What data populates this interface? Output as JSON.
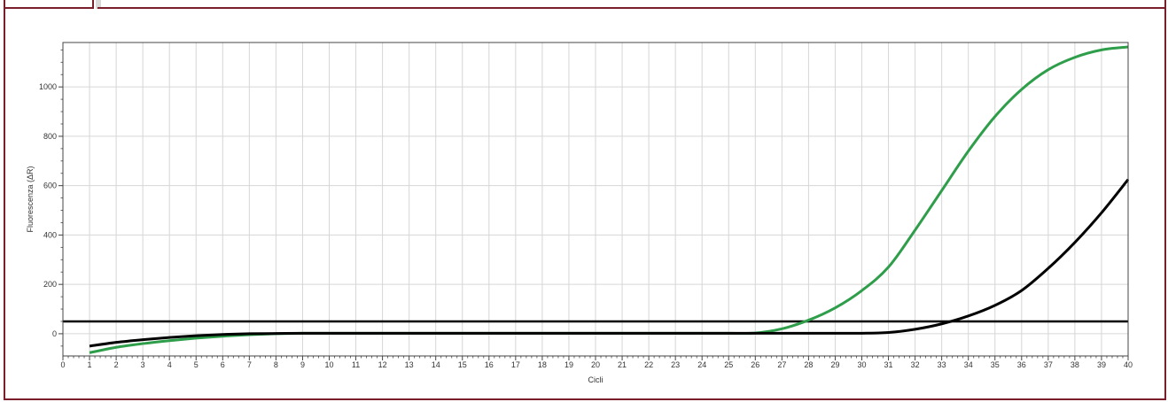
{
  "chart_data": {
    "type": "line",
    "title": "",
    "xlabel": "Cicli",
    "ylabel": "Fluorescenza (ΔR)",
    "xlim": [
      0,
      40
    ],
    "ylim": [
      -90,
      1180
    ],
    "x_ticks": [
      0,
      1,
      2,
      3,
      4,
      5,
      6,
      7,
      8,
      9,
      10,
      11,
      12,
      13,
      14,
      15,
      16,
      17,
      18,
      19,
      20,
      21,
      22,
      23,
      24,
      25,
      26,
      27,
      28,
      29,
      30,
      31,
      32,
      33,
      34,
      35,
      36,
      37,
      38,
      39,
      40
    ],
    "y_ticks": [
      0,
      200,
      400,
      600,
      800,
      1000
    ],
    "grid": true,
    "threshold": 50,
    "series": [
      {
        "color": "#2e9e4a",
        "x": [
          1,
          2,
          3,
          4,
          5,
          6,
          7,
          8,
          9,
          10,
          11,
          12,
          13,
          14,
          15,
          16,
          17,
          18,
          19,
          20,
          21,
          22,
          23,
          24,
          25,
          26,
          27,
          28,
          29,
          30,
          31,
          32,
          33,
          34,
          35,
          36,
          37,
          38,
          39,
          40
        ],
        "y": [
          -77,
          -55,
          -40,
          -28,
          -18,
          -10,
          -4,
          0,
          2,
          2,
          2,
          2,
          2,
          2,
          2,
          2,
          2,
          2,
          2,
          2,
          2,
          2,
          2,
          2,
          2,
          3,
          20,
          55,
          105,
          175,
          270,
          420,
          580,
          740,
          880,
          990,
          1070,
          1120,
          1150,
          1162
        ]
      },
      {
        "color": "#000000",
        "x": [
          1,
          2,
          3,
          4,
          5,
          6,
          7,
          8,
          9,
          10,
          11,
          12,
          13,
          14,
          15,
          16,
          17,
          18,
          19,
          20,
          21,
          22,
          23,
          24,
          25,
          26,
          27,
          28,
          29,
          30,
          31,
          32,
          33,
          34,
          35,
          36,
          37,
          38,
          39,
          40
        ],
        "y": [
          -50,
          -35,
          -24,
          -15,
          -8,
          -3,
          0,
          1,
          2,
          2,
          2,
          2,
          2,
          2,
          2,
          2,
          2,
          2,
          2,
          2,
          2,
          2,
          2,
          2,
          2,
          2,
          2,
          2,
          2,
          2,
          5,
          18,
          40,
          72,
          115,
          175,
          265,
          370,
          490,
          625
        ]
      }
    ]
  }
}
